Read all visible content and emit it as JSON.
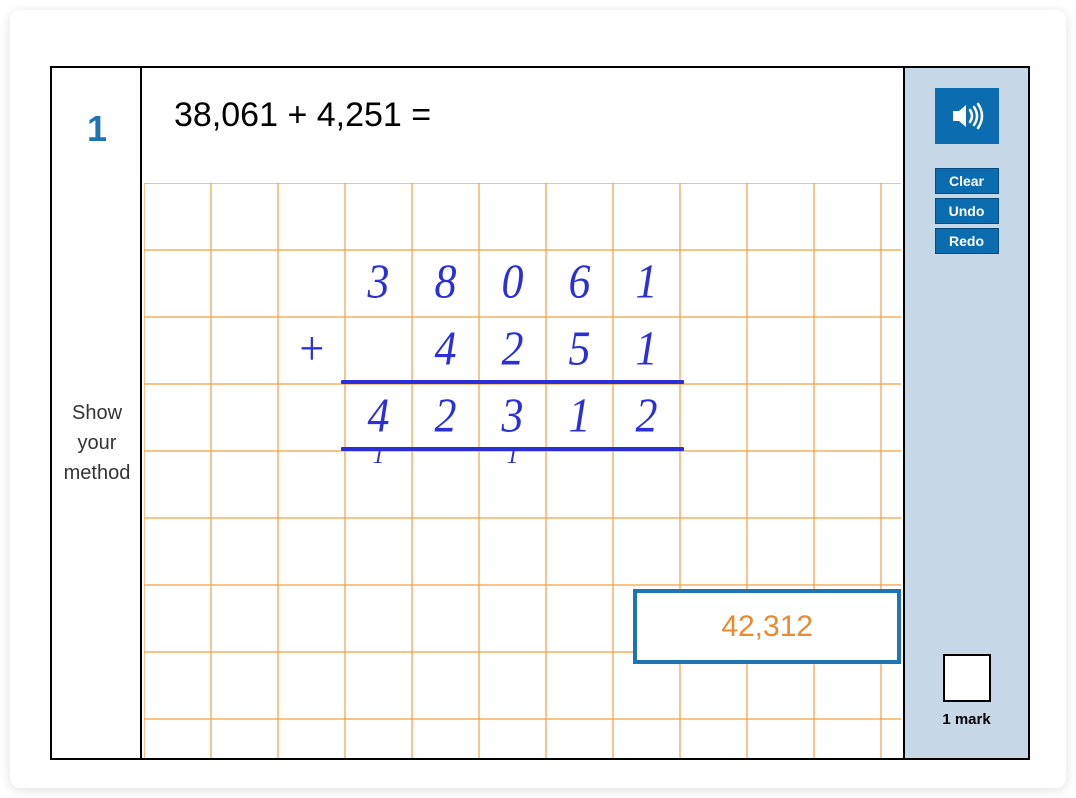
{
  "question_number": "1",
  "question_text": "38,061 + 4,251 =",
  "instruction_lines": [
    "Show",
    "your",
    "method"
  ],
  "grid": {
    "cell_size": 67,
    "cols": 12,
    "rows": 9,
    "line_color": "#f2a03c",
    "background": "#ffffff"
  },
  "handwriting": {
    "color": "#2a2fd8",
    "font": "Comic Sans MS",
    "rows": [
      {
        "row": 1,
        "cells": [
          {
            "col": 3,
            "char": "3"
          },
          {
            "col": 4,
            "char": "8"
          },
          {
            "col": 5,
            "char": "0"
          },
          {
            "col": 6,
            "char": "6"
          },
          {
            "col": 7,
            "char": "1"
          }
        ]
      },
      {
        "row": 2,
        "cells": [
          {
            "col": 2,
            "char": "+"
          },
          {
            "col": 4,
            "char": "4"
          },
          {
            "col": 5,
            "char": "2"
          },
          {
            "col": 6,
            "char": "5"
          },
          {
            "col": 7,
            "char": "1"
          }
        ]
      },
      {
        "row": 3,
        "cells": [
          {
            "col": 3,
            "char": "4"
          },
          {
            "col": 4,
            "char": "2"
          },
          {
            "col": 5,
            "char": "3"
          },
          {
            "col": 6,
            "char": "1"
          },
          {
            "col": 7,
            "char": "2"
          }
        ]
      }
    ],
    "carries": [
      {
        "col": 3,
        "char": "1"
      },
      {
        "col": 5,
        "char": "1"
      }
    ],
    "lines": [
      {
        "from_col": 3,
        "to_col": 8,
        "after_row": 2
      },
      {
        "from_col": 3,
        "to_col": 8,
        "after_row": 3
      }
    ]
  },
  "answer": {
    "value": "42,312",
    "text_color": "#e98a2e",
    "border_color": "#1f74b5",
    "col_start": 8.2,
    "col_end_offset": 0,
    "row": 6
  },
  "toolbar": {
    "speaker_icon": "speaker-icon",
    "clear": "Clear",
    "undo": "Undo",
    "redo": "Redo",
    "button_bg": "#0b6cb0"
  },
  "marks": {
    "label": "1 mark"
  },
  "colors": {
    "primary_blue": "#1f74b5",
    "panel_bg": "#c6d7e8"
  }
}
